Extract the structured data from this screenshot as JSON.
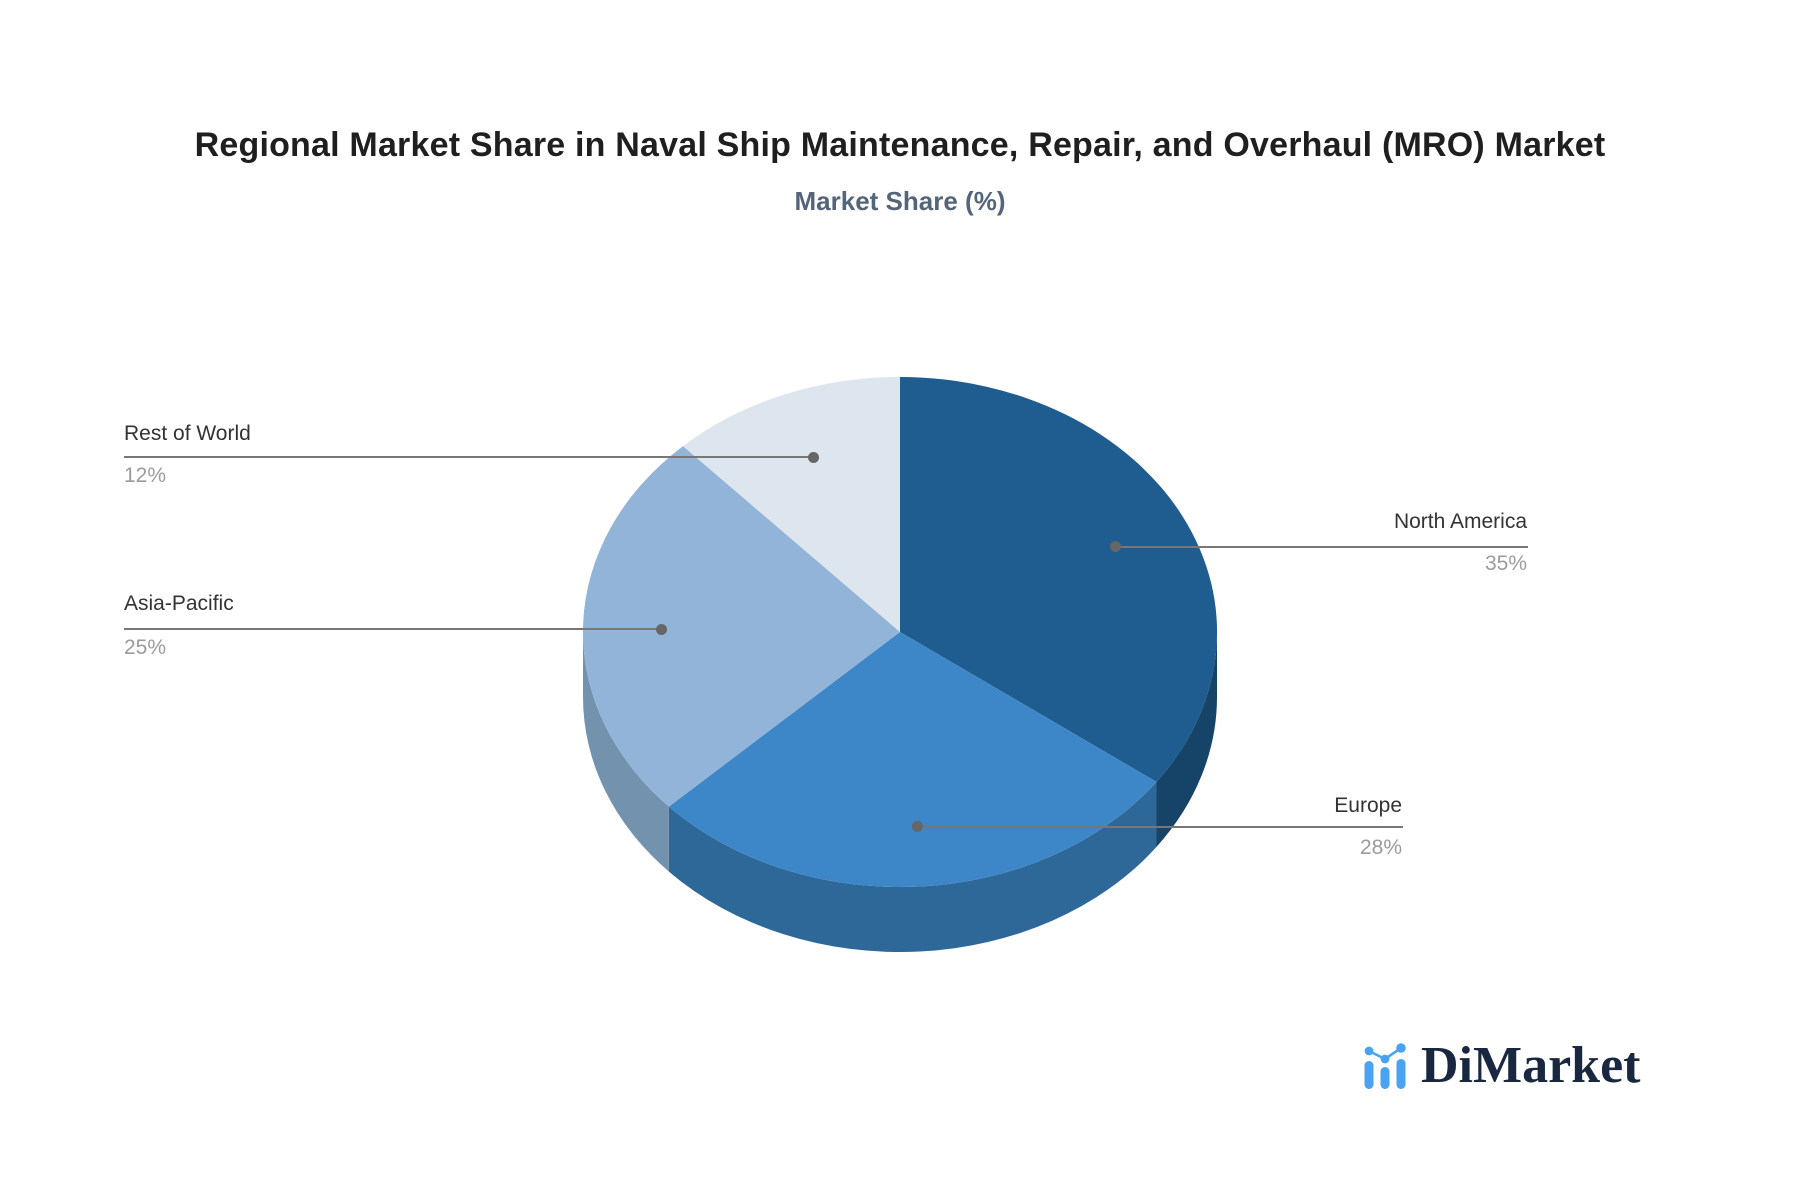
{
  "brand": {
    "name": "DiMarket"
  },
  "chart_data": {
    "type": "pie",
    "style": "3d",
    "title": "Regional Market Share in Naval Ship Maintenance, Repair, and Overhaul (MRO) Market",
    "subtitle": "Market Share (%)",
    "unit": "%",
    "categories": [
      "North America",
      "Europe",
      "Asia-Pacific",
      "Rest of World"
    ],
    "values": [
      35,
      28,
      25,
      12
    ],
    "labels_display": [
      "35%",
      "28%",
      "25%",
      "12%"
    ],
    "slice_colors": [
      "#1f5c90",
      "#3d87c8",
      "#92b4d8",
      "#dde5ee"
    ],
    "side_colors": [
      "#164368",
      "#2e6898",
      "#7292ae",
      "#c2cdd9"
    ],
    "start_angle": 0,
    "direction": "clockwise",
    "legend": "none",
    "label_position": "outside-callout",
    "callout_line_color": "#777777"
  }
}
